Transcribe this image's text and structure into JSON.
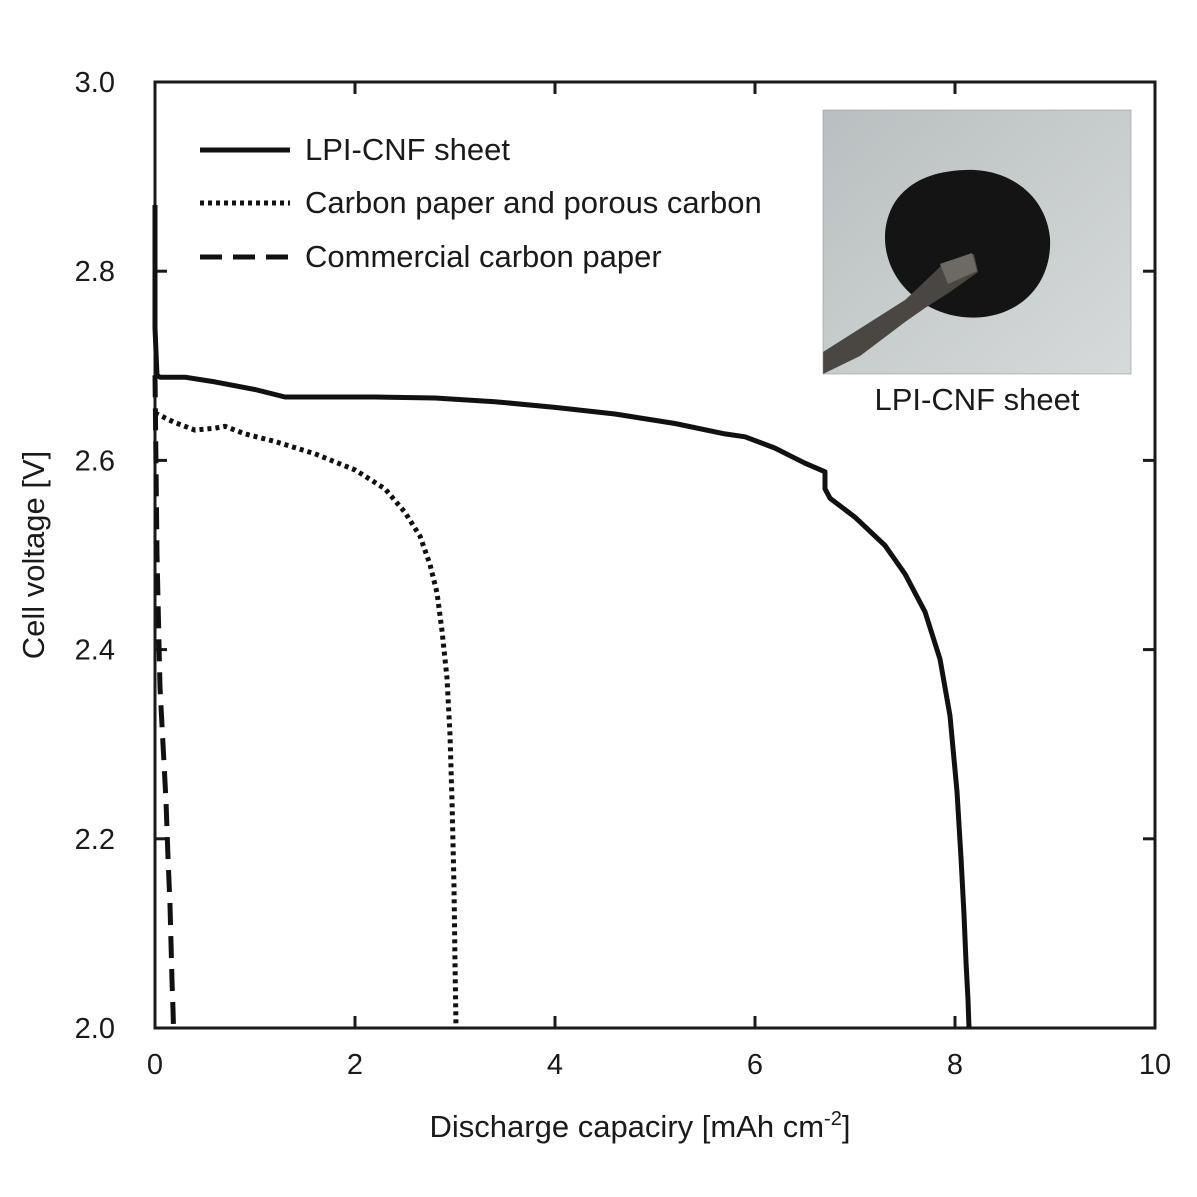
{
  "chart_data": {
    "type": "line",
    "xlabel": "Discharge capaciry [mAh cm",
    "xlabel_sup": "-2",
    "xlabel_tail": "]",
    "ylabel": "Cell voltage [V]",
    "xlim": [
      0,
      10
    ],
    "ylim": [
      2.0,
      3.0
    ],
    "x_ticks": [
      0,
      2,
      4,
      6,
      8,
      10
    ],
    "x_tick_labels": [
      "0",
      "2",
      "4",
      "6",
      "8",
      "10"
    ],
    "y_ticks": [
      2.0,
      2.2,
      2.4,
      2.6,
      2.8,
      3.0
    ],
    "y_tick_labels": [
      "2.0",
      "2.2",
      "2.4",
      "2.6",
      "2.8",
      "3.0"
    ],
    "grid": false,
    "legend_position": "top-left",
    "series": [
      {
        "name": "LPI-CNF sheet",
        "style": "solid",
        "color": "#111111",
        "x": [
          0.0,
          0.0,
          0.02,
          0.05,
          0.3,
          0.6,
          1.0,
          1.3,
          1.7,
          2.2,
          2.8,
          3.4,
          4.0,
          4.6,
          5.2,
          5.7,
          5.9,
          6.2,
          6.35,
          6.5,
          6.7,
          6.7,
          6.75,
          7.0,
          7.3,
          7.5,
          7.7,
          7.85,
          7.95,
          8.02,
          8.06,
          8.09,
          8.11,
          8.13,
          8.14
        ],
        "y": [
          2.87,
          2.74,
          2.69,
          2.688,
          2.688,
          2.683,
          2.675,
          2.667,
          2.667,
          2.667,
          2.666,
          2.662,
          2.656,
          2.649,
          2.639,
          2.628,
          2.625,
          2.613,
          2.605,
          2.597,
          2.588,
          2.57,
          2.56,
          2.54,
          2.51,
          2.48,
          2.44,
          2.39,
          2.33,
          2.25,
          2.18,
          2.12,
          2.07,
          2.03,
          2.0
        ]
      },
      {
        "name": "Carbon paper and porous carbon",
        "style": "dotted",
        "color": "#111111",
        "x": [
          0.0,
          0.2,
          0.4,
          0.6,
          0.7,
          0.9,
          1.2,
          1.6,
          2.0,
          2.3,
          2.5,
          2.65,
          2.75,
          2.82,
          2.87,
          2.92,
          2.95,
          2.97,
          2.99,
          3.0,
          3.01
        ],
        "y": [
          2.65,
          2.64,
          2.632,
          2.634,
          2.636,
          2.628,
          2.62,
          2.607,
          2.59,
          2.57,
          2.545,
          2.52,
          2.49,
          2.46,
          2.42,
          2.37,
          2.31,
          2.24,
          2.15,
          2.07,
          2.0
        ]
      },
      {
        "name": "Commercial carbon paper",
        "style": "dashed",
        "color": "#111111",
        "x": [
          0.0,
          0.02,
          0.05,
          0.08,
          0.11,
          0.13,
          0.15,
          0.16,
          0.17,
          0.18,
          0.185
        ],
        "y": [
          2.69,
          2.5,
          2.36,
          2.3,
          2.24,
          2.18,
          2.13,
          2.09,
          2.05,
          2.02,
          2.0
        ]
      }
    ],
    "inset": {
      "caption": "LPI-CNF sheet",
      "position": "top-right",
      "background_color": "#c9cdcd",
      "disc_color": "#141414",
      "tweezer_color": "#4a4742"
    }
  }
}
